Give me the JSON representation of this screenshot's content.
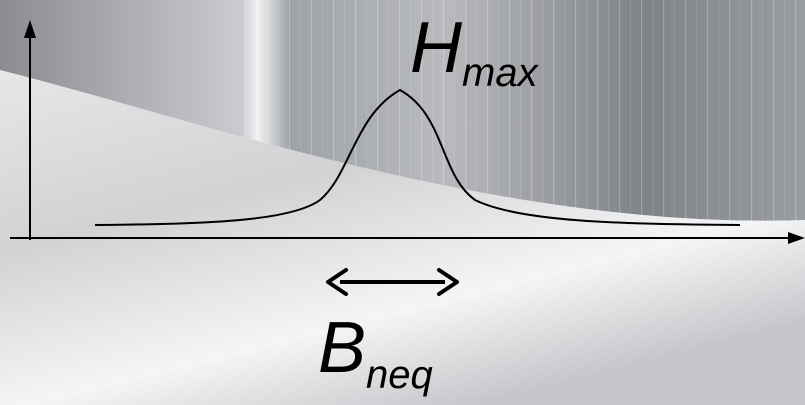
{
  "peak_label": {
    "main": "H",
    "sub": "max"
  },
  "width_label": {
    "main": "B",
    "sub": "neq"
  }
}
